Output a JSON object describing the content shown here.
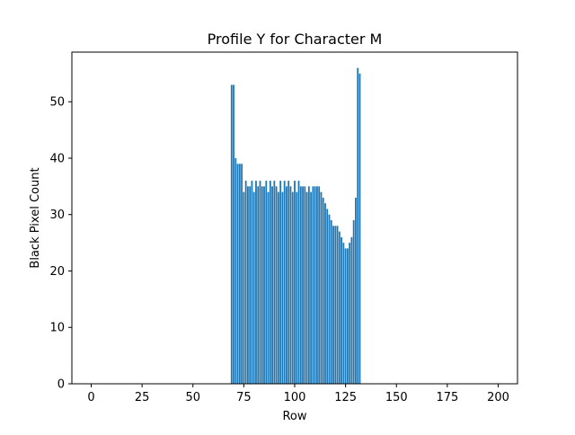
{
  "chart_data": {
    "type": "bar",
    "title": "Profile Y for Character M",
    "xlabel": "Row",
    "ylabel": "Black Pixel Count",
    "xlim": [
      -9.5,
      209.5
    ],
    "ylim": [
      0,
      58.8
    ],
    "xticks": [
      0,
      25,
      50,
      75,
      100,
      125,
      150,
      175,
      200
    ],
    "yticks": [
      0,
      10,
      20,
      30,
      40,
      50
    ],
    "grid": false,
    "bar_color": "#1f77b4",
    "x": [
      69,
      70,
      71,
      72,
      73,
      74,
      75,
      76,
      77,
      78,
      79,
      80,
      81,
      82,
      83,
      84,
      85,
      86,
      87,
      88,
      89,
      90,
      91,
      92,
      93,
      94,
      95,
      96,
      97,
      98,
      99,
      100,
      101,
      102,
      103,
      104,
      105,
      106,
      107,
      108,
      109,
      110,
      111,
      112,
      113,
      114,
      115,
      116,
      117,
      118,
      119,
      120,
      121,
      122,
      123,
      124,
      125,
      126,
      127,
      128,
      129,
      130,
      131,
      132,
      133,
      134
    ],
    "values": [
      53,
      53,
      40,
      39,
      39,
      39,
      34,
      36,
      35,
      35,
      36,
      34,
      36,
      35,
      36,
      35,
      35,
      36,
      34,
      36,
      35,
      36,
      35,
      34,
      36,
      34,
      36,
      35,
      36,
      35,
      34,
      36,
      34,
      36,
      35,
      35,
      35,
      34,
      35,
      34,
      35,
      35,
      35,
      35,
      34,
      33,
      32,
      31,
      30,
      29,
      28,
      28,
      28,
      27,
      26,
      25,
      24,
      24,
      25,
      26,
      29,
      33,
      56,
      55,
      0,
      0
    ]
  }
}
